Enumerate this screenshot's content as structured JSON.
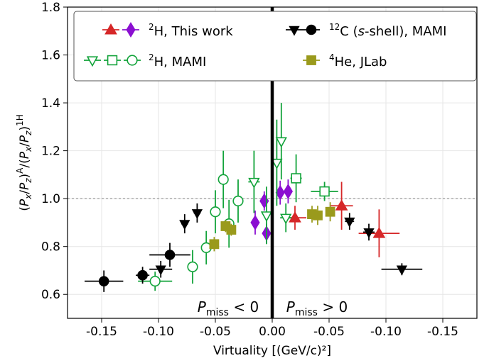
{
  "chart_data": {
    "type": "scatter",
    "xlabel": "Virtuality [(GeV/c)²]",
    "ylabel_parts": {
      "open": "(",
      "px": "P",
      "x": "x",
      "slash": "/",
      "pz": "P",
      "z": "z",
      "closeA": ")",
      "A": "A",
      "slash2": "/(",
      "px2": "P",
      "x2": "x",
      "slash3": "/",
      "pz2": "P",
      "z2": "z",
      "close2": ")",
      "H1": "1H"
    },
    "xlim": [
      -0.18,
      0.18
    ],
    "ylim": [
      0.5,
      1.8
    ],
    "xticks": [
      -0.15,
      -0.1,
      -0.05,
      0.0,
      0.05,
      0.1,
      0.15
    ],
    "xtick_labels": [
      "-0.15",
      "-0.10",
      "-0.05",
      "0.00",
      "-0.05",
      "-0.10",
      "-0.15"
    ],
    "yticks": [
      0.6,
      0.8,
      1.0,
      1.2,
      1.4,
      1.6,
      1.8
    ],
    "ytick_labels": [
      "0.6",
      "0.8",
      "1.0",
      "1.2",
      "1.4",
      "1.6",
      "1.8"
    ],
    "grid": true,
    "reference_line_y": 1.0,
    "vertical_divider_x": 0.0,
    "region_labels": {
      "left": {
        "P": "P",
        "sub": "miss",
        "rel": " < 0"
      },
      "right": {
        "P": "P",
        "sub": "miss",
        "rel": " > 0"
      }
    },
    "legend": {
      "placement": "top",
      "entries": [
        {
          "text_sup": "2",
          "text_main": "H, This work"
        },
        {
          "text_sup": "2",
          "text_main": "H, MAMI"
        },
        {
          "text_sup": "12",
          "text_main": "C (",
          "text_italic": "s",
          "text_after": "-shell), MAMI"
        },
        {
          "text_sup": "4",
          "text_main": "He, JLab"
        }
      ]
    },
    "colors": {
      "red": "#d62728",
      "purple": "#8b0fd1",
      "green": "#12a33a",
      "black": "#000000",
      "olive": "#9a9a1c"
    },
    "series": [
      {
        "name": "2H, This work (red triangles)",
        "marker": "triangle-up",
        "color": "#d62728",
        "points": [
          {
            "x": 0.02,
            "y": 0.92,
            "xerr": 0.01,
            "yerr": 0.05
          },
          {
            "x": 0.061,
            "y": 0.97,
            "xerr": 0.01,
            "yerr": 0.1
          },
          {
            "x": 0.094,
            "y": 0.855,
            "xerr": 0.018,
            "yerr": 0.1
          }
        ]
      },
      {
        "name": "2H, This work (purple diamonds)",
        "marker": "diamond",
        "color": "#8b0fd1",
        "points": [
          {
            "x": -0.015,
            "y": 0.9,
            "xerr": 0.0,
            "yerr": 0.05
          },
          {
            "x": -0.007,
            "y": 0.99,
            "xerr": 0.0,
            "yerr": 0.04
          },
          {
            "x": -0.005,
            "y": 0.855,
            "xerr": 0.0,
            "yerr": 0.04
          },
          {
            "x": 0.007,
            "y": 1.025,
            "xerr": 0.0,
            "yerr": 0.05
          },
          {
            "x": 0.014,
            "y": 1.03,
            "xerr": 0.0,
            "yerr": 0.05
          }
        ]
      },
      {
        "name": "2H, MAMI (open down-triangles)",
        "marker": "triangle-down-open",
        "color": "#12a33a",
        "points": [
          {
            "x": -0.016,
            "y": 1.07,
            "xerr": 0.005,
            "yerr": 0.13
          },
          {
            "x": -0.005,
            "y": 0.93,
            "xerr": 0.003,
            "yerr": 0.12
          },
          {
            "x": 0.004,
            "y": 1.15,
            "xerr": 0.003,
            "yerr": 0.18
          },
          {
            "x": 0.008,
            "y": 1.24,
            "xerr": 0.003,
            "yerr": 0.16
          },
          {
            "x": 0.012,
            "y": 0.92,
            "xerr": 0.005,
            "yerr": 0.06
          }
        ]
      },
      {
        "name": "2H, MAMI (open squares)",
        "marker": "square-open",
        "color": "#12a33a",
        "points": [
          {
            "x": 0.021,
            "y": 1.085,
            "xerr": 0.005,
            "yerr": 0.1
          },
          {
            "x": 0.046,
            "y": 1.03,
            "xerr": 0.012,
            "yerr": 0.04
          }
        ]
      },
      {
        "name": "2H, MAMI (open circles)",
        "marker": "circle-open",
        "color": "#12a33a",
        "points": [
          {
            "x": -0.103,
            "y": 0.655,
            "xerr": 0.015,
            "yerr": 0.04
          },
          {
            "x": -0.07,
            "y": 0.715,
            "xerr": 0.0,
            "yerr": 0.07
          },
          {
            "x": -0.058,
            "y": 0.795,
            "xerr": 0.0,
            "yerr": 0.07
          },
          {
            "x": -0.05,
            "y": 0.945,
            "xerr": 0.0,
            "yerr": 0.09
          },
          {
            "x": -0.043,
            "y": 1.08,
            "xerr": 0.0,
            "yerr": 0.12
          },
          {
            "x": -0.038,
            "y": 0.895,
            "xerr": 0.0,
            "yerr": 0.1
          },
          {
            "x": -0.03,
            "y": 0.99,
            "xerr": 0.0,
            "yerr": 0.09
          }
        ]
      },
      {
        "name": "12C (s-shell), MAMI (black down-triangles)",
        "marker": "triangle-down",
        "color": "#000000",
        "points": [
          {
            "x": -0.098,
            "y": 0.705,
            "xerr": 0.01,
            "yerr": 0.035
          },
          {
            "x": -0.077,
            "y": 0.895,
            "xerr": 0.003,
            "yerr": 0.04
          },
          {
            "x": -0.066,
            "y": 0.94,
            "xerr": 0.003,
            "yerr": 0.04
          },
          {
            "x": 0.068,
            "y": 0.905,
            "xerr": 0.004,
            "yerr": 0.035
          },
          {
            "x": 0.085,
            "y": 0.86,
            "xerr": 0.005,
            "yerr": 0.035
          },
          {
            "x": 0.114,
            "y": 0.705,
            "xerr": 0.018,
            "yerr": 0.025
          }
        ]
      },
      {
        "name": "12C (s-shell), MAMI (black circles)",
        "marker": "circle",
        "color": "#000000",
        "points": [
          {
            "x": -0.148,
            "y": 0.655,
            "xerr": 0.017,
            "yerr": 0.045
          },
          {
            "x": -0.114,
            "y": 0.68,
            "xerr": 0.006,
            "yerr": 0.035
          },
          {
            "x": -0.09,
            "y": 0.765,
            "xerr": 0.018,
            "yerr": 0.05
          }
        ]
      },
      {
        "name": "4He, JLab",
        "marker": "square",
        "color": "#9a9a1c",
        "points": [
          {
            "x": -0.051,
            "y": 0.81,
            "xerr": 0.004,
            "yerr": 0.03
          },
          {
            "x": -0.041,
            "y": 0.885,
            "xerr": 0.004,
            "yerr": 0.025
          },
          {
            "x": -0.036,
            "y": 0.87,
            "xerr": 0.004,
            "yerr": 0.025
          },
          {
            "x": 0.035,
            "y": 0.935,
            "xerr": 0.004,
            "yerr": 0.035
          },
          {
            "x": 0.04,
            "y": 0.93,
            "xerr": 0.004,
            "yerr": 0.04
          },
          {
            "x": 0.051,
            "y": 0.945,
            "xerr": 0.004,
            "yerr": 0.04
          }
        ]
      }
    ]
  }
}
